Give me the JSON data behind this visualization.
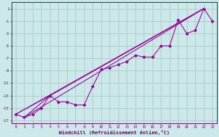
{
  "xlabel": "Windchill (Refroidissement éolien,°C)",
  "background_color": "#cce8e8",
  "grid_color": "#aacccc",
  "line_color": "#990099",
  "marker_color": "#990099",
  "xlim": [
    -0.5,
    23.5
  ],
  "ylim": [
    -17.5,
    2.0
  ],
  "xticks": [
    0,
    1,
    2,
    3,
    4,
    5,
    6,
    7,
    8,
    9,
    10,
    11,
    12,
    13,
    14,
    15,
    16,
    17,
    18,
    19,
    20,
    21,
    22,
    23
  ],
  "yticks": [
    1,
    -1,
    -3,
    -5,
    -7,
    -9,
    -11,
    -13,
    -15,
    -17
  ],
  "series": [
    [
      0,
      -16.0
    ],
    [
      1,
      -16.5
    ],
    [
      2,
      -16.0
    ],
    [
      3,
      -15.0
    ],
    [
      4,
      -13.0
    ],
    [
      5,
      -14.0
    ],
    [
      6,
      -14.0
    ],
    [
      7,
      -14.5
    ],
    [
      8,
      -14.5
    ],
    [
      9,
      -11.5
    ],
    [
      10,
      -8.8
    ],
    [
      11,
      -8.5
    ],
    [
      12,
      -8.0
    ],
    [
      13,
      -7.5
    ],
    [
      14,
      -6.5
    ],
    [
      15,
      -6.8
    ],
    [
      16,
      -6.8
    ],
    [
      17,
      -5.0
    ],
    [
      18,
      -5.0
    ],
    [
      19,
      -0.8
    ],
    [
      20,
      -3.0
    ],
    [
      21,
      -2.5
    ],
    [
      22,
      1.0
    ],
    [
      23,
      -1.0
    ]
  ],
  "envelope_lines": [
    [
      [
        0,
        -16.0
      ],
      [
        22,
        1.0
      ]
    ],
    [
      [
        1,
        -16.5
      ],
      [
        22,
        1.0
      ]
    ],
    [
      [
        0,
        -16.0
      ],
      [
        4,
        -13.0
      ],
      [
        22,
        1.0
      ]
    ],
    [
      [
        1,
        -16.5
      ],
      [
        4,
        -13.0
      ],
      [
        22,
        1.0
      ]
    ]
  ]
}
